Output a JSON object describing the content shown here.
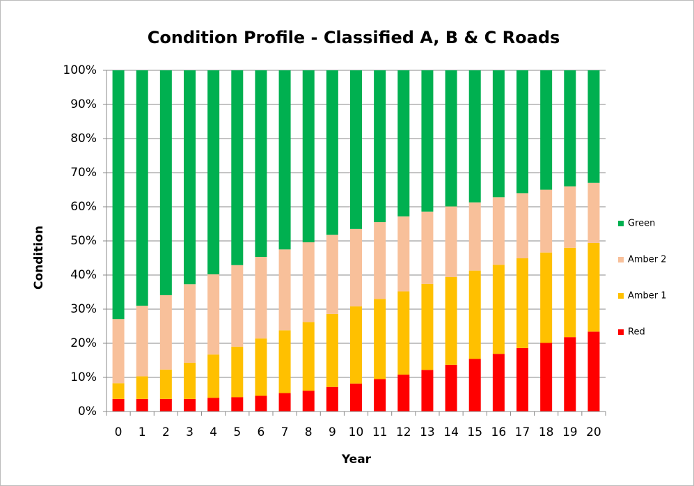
{
  "chart_data": {
    "type": "stacked_bar",
    "title": "Condition Profile - Classified A, B & C Roads",
    "x_label": "Year",
    "y_label": "Condition",
    "categories": [
      "0",
      "1",
      "2",
      "3",
      "4",
      "5",
      "6",
      "7",
      "8",
      "9",
      "10",
      "11",
      "12",
      "13",
      "14",
      "15",
      "16",
      "17",
      "18",
      "19",
      "20"
    ],
    "series": [
      {
        "name": "Red",
        "color": "#ff0000",
        "values": [
          3.7,
          3.7,
          3.7,
          3.7,
          4.0,
          4.2,
          4.6,
          5.4,
          6.1,
          7.2,
          8.2,
          9.5,
          10.8,
          12.2,
          13.7,
          15.4,
          16.9,
          18.6,
          20.1,
          21.8,
          23.4
        ]
      },
      {
        "name": "Amber 1",
        "color": "#ffc000",
        "values": [
          4.6,
          6.6,
          8.6,
          10.6,
          12.7,
          14.8,
          16.8,
          18.4,
          20.1,
          21.4,
          22.6,
          23.5,
          24.4,
          25.2,
          25.7,
          25.9,
          26.1,
          26.3,
          26.5,
          26.2,
          26.0
        ]
      },
      {
        "name": "Amber 2",
        "color": "#f8c09a",
        "values": [
          18.8,
          20.7,
          21.8,
          23.0,
          23.5,
          23.9,
          23.9,
          23.7,
          23.4,
          23.2,
          22.7,
          22.5,
          22.0,
          21.2,
          20.7,
          20.0,
          19.8,
          19.1,
          18.4,
          18.0,
          17.6
        ]
      },
      {
        "name": "Green",
        "color": "#00b050",
        "values": [
          72.9,
          69.0,
          65.9,
          62.7,
          59.8,
          57.1,
          54.7,
          52.5,
          50.4,
          48.2,
          46.5,
          44.5,
          42.8,
          41.4,
          39.9,
          38.7,
          37.2,
          36.0,
          35.0,
          34.0,
          33.0
        ]
      }
    ],
    "ylim": [
      0,
      100
    ],
    "yticks": [
      {
        "value": 0,
        "label": "0%"
      },
      {
        "value": 10,
        "label": "10%"
      },
      {
        "value": 20,
        "label": "20%"
      },
      {
        "value": 30,
        "label": "30%"
      },
      {
        "value": 40,
        "label": "40%"
      },
      {
        "value": 50,
        "label": "50%"
      },
      {
        "value": 60,
        "label": "60%"
      },
      {
        "value": 70,
        "label": "70%"
      },
      {
        "value": 80,
        "label": "80%"
      },
      {
        "value": 90,
        "label": "90%"
      },
      {
        "value": 100,
        "label": "100%"
      }
    ],
    "grid": true,
    "legend": "right"
  }
}
